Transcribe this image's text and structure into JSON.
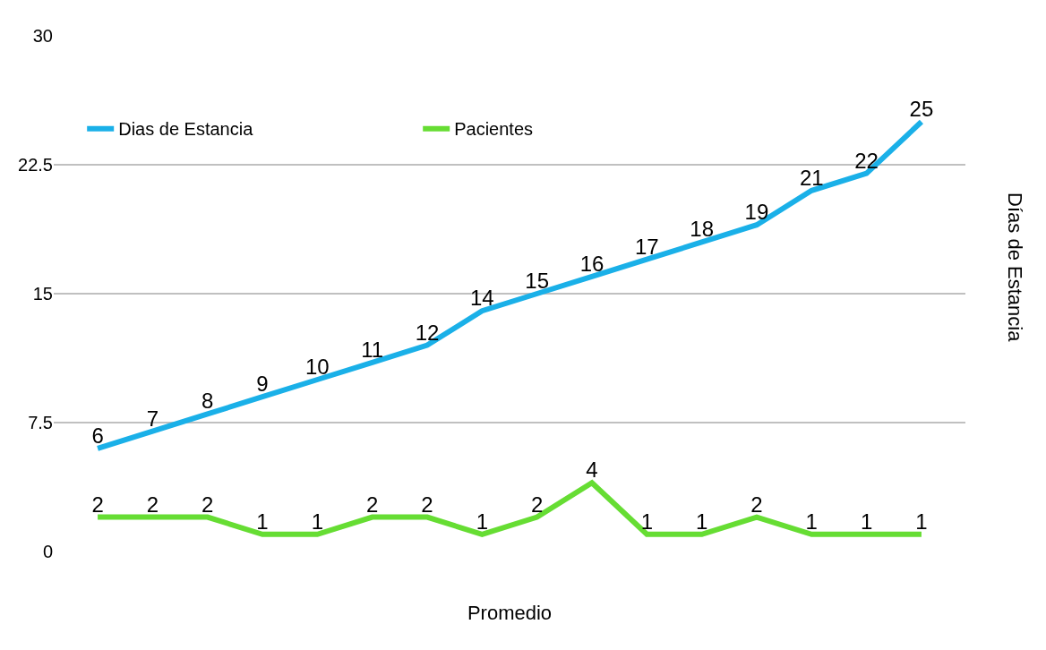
{
  "chart_data": {
    "type": "line",
    "xlabel": "Promedio",
    "ylabel": "Días de Estancia",
    "categories": [
      null,
      null,
      null,
      null,
      null,
      null,
      null,
      null,
      null,
      null,
      null,
      null,
      null,
      null,
      null,
      null
    ],
    "series": [
      {
        "name": "Dias de Estancia",
        "color": "#1ab0e8",
        "values": [
          6,
          7,
          8,
          9,
          10,
          11,
          12,
          14,
          15,
          16,
          17,
          18,
          19,
          21,
          22,
          25
        ]
      },
      {
        "name": "Pacientes",
        "color": "#66dd33",
        "values": [
          2,
          2,
          2,
          1,
          1,
          2,
          2,
          1,
          2,
          4,
          1,
          1,
          2,
          1,
          1,
          1
        ]
      }
    ],
    "ylim": [
      0,
      30
    ],
    "yticks": [
      0,
      7.5,
      15,
      22.5,
      30
    ],
    "grid": "y",
    "legend": "top",
    "data_labels": true,
    "marker": "none",
    "line_style": "solid"
  }
}
